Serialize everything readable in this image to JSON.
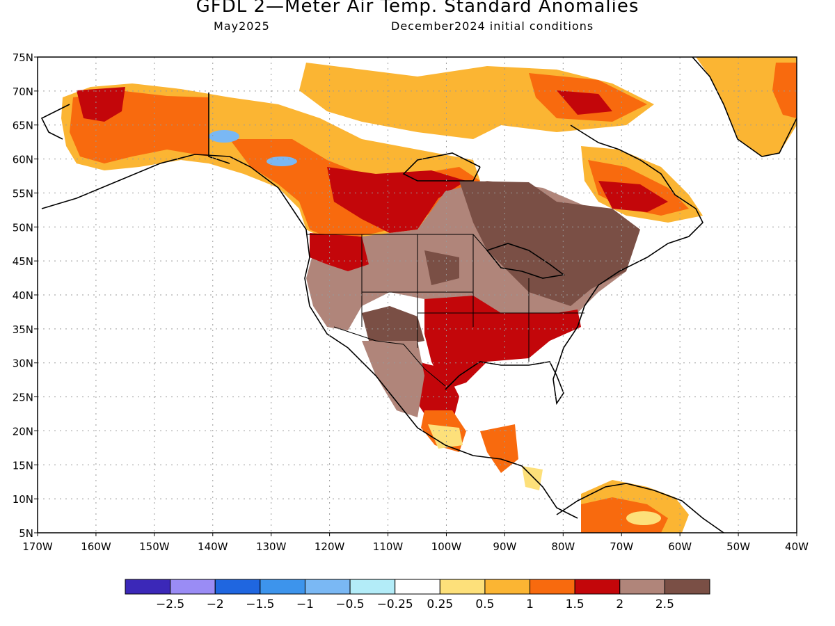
{
  "header": {
    "title": "GFDL 2—Meter Air Temp. Standard Anomalies",
    "valid_month": "May2025",
    "initial_conditions": "December2024 initial conditions"
  },
  "map": {
    "lat_labels": [
      "75N",
      "70N",
      "65N",
      "60N",
      "55N",
      "50N",
      "45N",
      "40N",
      "35N",
      "30N",
      "25N",
      "20N",
      "15N",
      "10N",
      "5N"
    ],
    "lon_labels": [
      "170W",
      "160W",
      "150W",
      "140W",
      "130W",
      "120W",
      "110W",
      "100W",
      "90W",
      "80W",
      "70W",
      "60W",
      "50W",
      "40W"
    ],
    "lat_range": [
      5,
      75
    ],
    "lon_range": [
      -170,
      -40
    ]
  },
  "colorbar": {
    "colors": [
      "#3b28b8",
      "#9a8cf5",
      "#1f66e0",
      "#3d94ec",
      "#7ab8f4",
      "#b3ecf8",
      "#ffffff",
      "#fde07a",
      "#fbb533",
      "#f86a0e",
      "#c3060a",
      "#b0857a",
      "#7a4f45"
    ],
    "labels": [
      "−2.5",
      "−2",
      "−1.5",
      "−1",
      "−0.5",
      "−0.25",
      "0.25",
      "0.5",
      "1",
      "1.5",
      "2",
      "2.5"
    ]
  }
}
